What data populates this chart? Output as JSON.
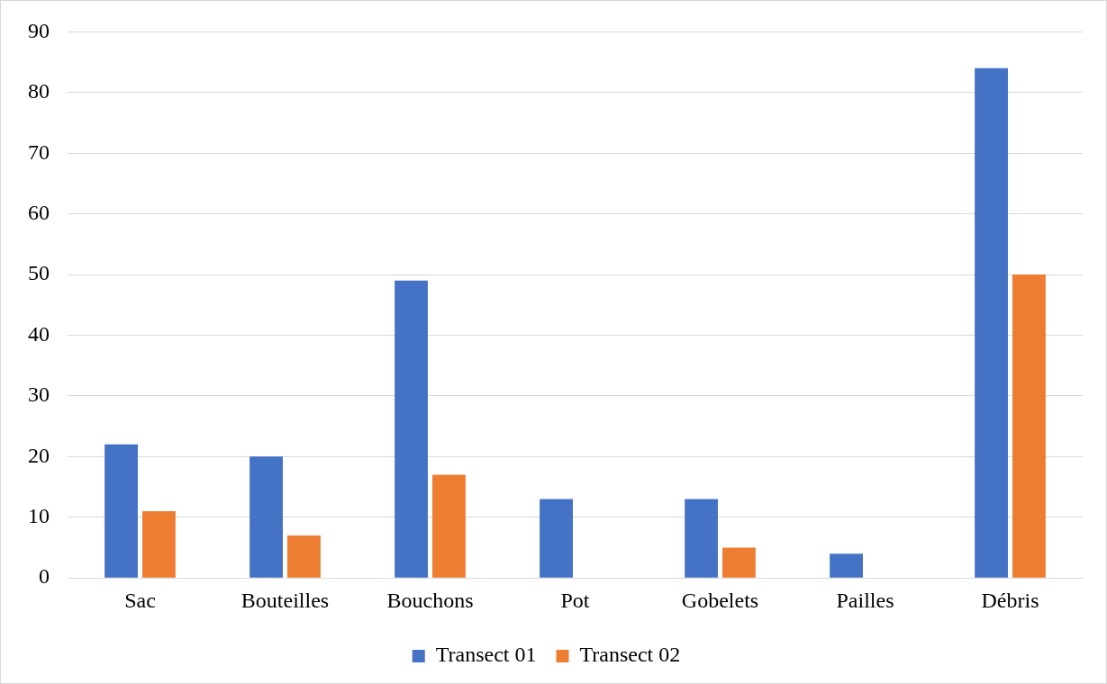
{
  "chart_data": {
    "type": "bar",
    "categories": [
      "Sac",
      "Bouteilles",
      "Bouchons",
      "Pot",
      "Gobelets",
      "Pailles",
      "Débris"
    ],
    "series": [
      {
        "name": "Transect 01",
        "color": "#4472c4",
        "values": [
          22,
          20,
          49,
          13,
          13,
          4,
          84
        ]
      },
      {
        "name": "Transect 02",
        "color": "#ed7d31",
        "values": [
          11,
          7,
          17,
          0,
          5,
          0,
          50
        ]
      }
    ],
    "ylim": [
      0,
      90
    ],
    "yticks": [
      0,
      10,
      20,
      30,
      40,
      50,
      60,
      70,
      80,
      90
    ],
    "grid": "y",
    "legend": "bottom"
  }
}
